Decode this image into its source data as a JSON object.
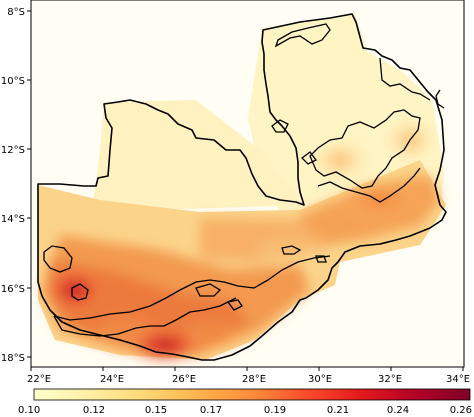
{
  "map": {
    "y_ticks": [
      "8°S",
      "10°S",
      "12°S",
      "14°S",
      "16°S",
      "18°S"
    ],
    "x_ticks": [
      "22°E",
      "24°E",
      "26°E",
      "28°E",
      "30°E",
      "32°E",
      "34°E"
    ],
    "lon_range": [
      22,
      34
    ],
    "lat_range": [
      -18.2,
      -7.8
    ],
    "background_color": "#fffdf4",
    "outline_color": "#000000"
  },
  "colorbar": {
    "ticks": [
      "0.10",
      "0.12",
      "0.15",
      "0.17",
      "0.19",
      "0.21",
      "0.24",
      "0.26"
    ],
    "range": [
      0.1,
      0.26
    ],
    "colormap": "YlOrRd",
    "stops": [
      "#ffffcc",
      "#fff0a8",
      "#fed976",
      "#feb24c",
      "#fd8d3c",
      "#fc4e2a",
      "#e31a1c",
      "#b10026",
      "#800026"
    ]
  }
}
